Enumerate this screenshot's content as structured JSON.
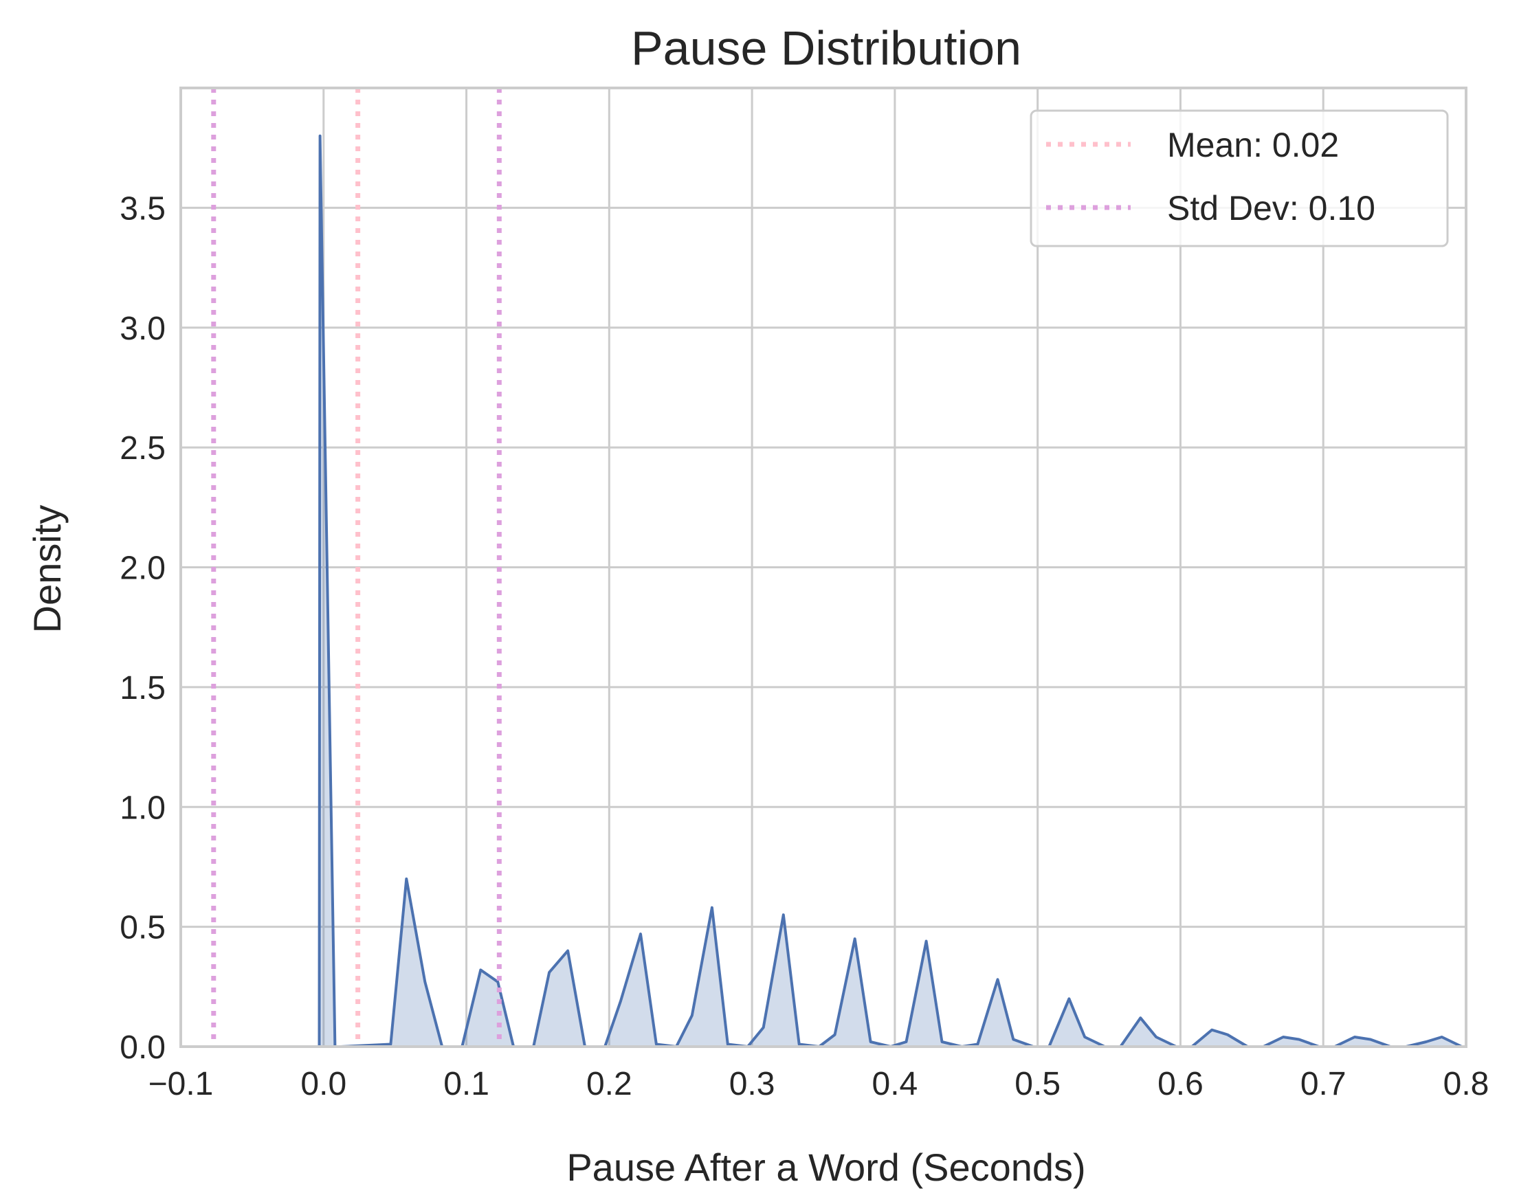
{
  "chart_data": {
    "type": "area",
    "title": "Pause Distribution",
    "xlabel": "Pause After a Word (Seconds)",
    "ylabel": "Density",
    "xlim": [
      -0.1,
      0.8
    ],
    "ylim": [
      0,
      4.0
    ],
    "x_ticks": [
      -0.1,
      0.0,
      0.1,
      0.2,
      0.3,
      0.4,
      0.5,
      0.6,
      0.7,
      0.8
    ],
    "x_tick_labels": [
      "−0.1",
      "0.0",
      "0.1",
      "0.2",
      "0.3",
      "0.4",
      "0.5",
      "0.6",
      "0.7",
      "0.8"
    ],
    "y_ticks": [
      0.0,
      0.5,
      1.0,
      1.5,
      2.0,
      2.5,
      3.0,
      3.5
    ],
    "y_tick_labels": [
      "0.0",
      "0.5",
      "1.0",
      "1.5",
      "2.0",
      "2.5",
      "3.0",
      "3.5"
    ],
    "grid": true,
    "legend_position": "top-right",
    "colors": {
      "density_line": "#4c72b0",
      "density_fill": "#4c72b0",
      "mean_line": "#ffc0cb",
      "std_line": "#dda0dd",
      "grid": "#cccccc",
      "text": "#262626"
    },
    "series": [
      {
        "x": [
          -0.003,
          -0.0025,
          0.008,
          0.012,
          0.047,
          0.058,
          0.071,
          0.083,
          0.097,
          0.11,
          0.122,
          0.133,
          0.147,
          0.158,
          0.171,
          0.183,
          0.197,
          0.208,
          0.222,
          0.233,
          0.247,
          0.258,
          0.272,
          0.283,
          0.297,
          0.308,
          0.322,
          0.333,
          0.347,
          0.358,
          0.372,
          0.383,
          0.397,
          0.408,
          0.422,
          0.433,
          0.447,
          0.458,
          0.472,
          0.483,
          0.497,
          0.508,
          0.522,
          0.533,
          0.547,
          0.558,
          0.572,
          0.583,
          0.597,
          0.608,
          0.622,
          0.633,
          0.647,
          0.658,
          0.672,
          0.683,
          0.697,
          0.708,
          0.722,
          0.733,
          0.747,
          0.758,
          0.772,
          0.783,
          0.797
        ],
        "y": [
          0.0,
          3.8,
          0.0,
          0.0,
          0.01,
          0.7,
          0.27,
          0.0,
          0.0,
          0.32,
          0.27,
          0.0,
          0.0,
          0.31,
          0.4,
          0.0,
          0.0,
          0.19,
          0.47,
          0.01,
          0.0,
          0.13,
          0.58,
          0.01,
          0.0,
          0.08,
          0.55,
          0.01,
          0.0,
          0.05,
          0.45,
          0.02,
          0.0,
          0.02,
          0.44,
          0.02,
          0.0,
          0.01,
          0.28,
          0.03,
          0.0,
          0.0,
          0.2,
          0.04,
          0.0,
          0.0,
          0.12,
          0.04,
          0.0,
          0.0,
          0.07,
          0.05,
          0.0,
          0.0,
          0.04,
          0.03,
          0.0,
          0.0,
          0.04,
          0.03,
          0.0,
          0.0,
          0.02,
          0.04,
          0.0
        ]
      }
    ],
    "reference_lines": [
      {
        "name": "Mean: 0.02",
        "x": 0.024,
        "style": "dotted",
        "color": "#ffc0cb"
      },
      {
        "name": "Std Dev: 0.10",
        "x": -0.077,
        "style": "dotted",
        "color": "#dda0dd"
      },
      {
        "name": "Std Dev: 0.10",
        "x": 0.123,
        "style": "dotted",
        "color": "#dda0dd"
      }
    ],
    "legend": [
      {
        "label": "Mean: 0.02",
        "color": "#ffc0cb"
      },
      {
        "label": "Std Dev: 0.10",
        "color": "#dda0dd"
      }
    ]
  }
}
